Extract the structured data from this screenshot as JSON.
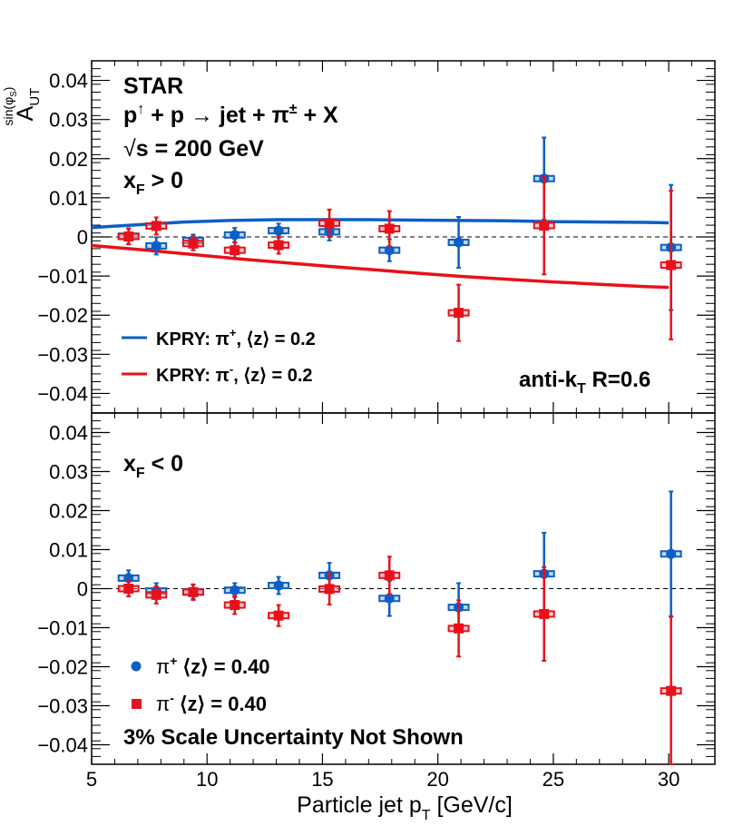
{
  "chart_data": [
    {
      "type": "scatter",
      "panel": "top",
      "title": "STAR",
      "reaction": {
        "base": "p",
        "arrow": "↑",
        "rest": " + p  → jet +  π",
        "sup": "±",
        "tail": " + X"
      },
      "energy": {
        "root": "√",
        "text": "s = 200 GeV"
      },
      "condition": {
        "base": "x",
        "sub": "F",
        "rest": " > 0"
      },
      "ylabel": {
        "base": "A",
        "sub": "UT",
        "sup": "sin(φ",
        "supsub": "S",
        "supclose": ")"
      },
      "annotation": {
        "base": "anti-k",
        "sub": "T",
        "rest": " R=0.6"
      },
      "xlim": [
        5,
        32
      ],
      "ylim": [
        -0.045,
        0.045
      ],
      "yticks": [
        -0.04,
        -0.03,
        -0.02,
        -0.01,
        0,
        0.01,
        0.02,
        0.03,
        0.04
      ],
      "ytick_labels": [
        "−0.04",
        "−0.03",
        "−0.02",
        "−0.01",
        "0",
        "0.01",
        "0.02",
        "0.03",
        "0.04"
      ],
      "series": [
        {
          "name": "pi_plus",
          "marker": "circle",
          "color": "#0b5fc4",
          "x": [
            6.6,
            7.8,
            9.4,
            11.2,
            13.1,
            15.3,
            17.9,
            20.9,
            24.6,
            30.1
          ],
          "y": [
            0.0002,
            -0.0023,
            -0.0009,
            0.0005,
            0.0016,
            0.0013,
            -0.0034,
            -0.0014,
            0.0149,
            -0.0027
          ],
          "err": [
            0.002,
            0.0022,
            0.0015,
            0.0018,
            0.0018,
            0.0022,
            0.0028,
            0.0065,
            0.0105,
            0.016
          ]
        },
        {
          "name": "pi_minus",
          "marker": "square",
          "color": "#e8101a",
          "x": [
            6.6,
            7.8,
            9.4,
            11.2,
            13.1,
            15.3,
            17.9,
            20.9,
            24.6,
            30.1
          ],
          "y": [
            0.0001,
            0.0028,
            -0.0017,
            -0.0034,
            -0.0021,
            0.0035,
            0.0021,
            -0.0194,
            0.0029,
            -0.0072
          ],
          "err": [
            0.002,
            0.0022,
            0.0017,
            0.002,
            0.0022,
            0.0035,
            0.0045,
            0.0072,
            0.0125,
            0.019
          ]
        }
      ],
      "curves": [
        {
          "name": "KPRY pi+",
          "color": "#0b5fc4",
          "x": [
            5,
            7,
            9,
            11,
            13,
            15,
            17,
            19,
            21,
            23,
            25,
            27,
            29,
            30
          ],
          "y": [
            0.0024,
            0.0031,
            0.0038,
            0.0042,
            0.0044,
            0.0044,
            0.0044,
            0.0043,
            0.0042,
            0.0041,
            0.0039,
            0.0038,
            0.0037,
            0.0036
          ]
        },
        {
          "name": "KPRY pi-",
          "color": "#e8101a",
          "x": [
            5,
            7,
            9,
            11,
            13,
            15,
            17,
            19,
            21,
            23,
            25,
            27,
            29,
            30
          ],
          "y": [
            -0.0022,
            -0.0032,
            -0.0043,
            -0.0054,
            -0.0064,
            -0.0074,
            -0.0083,
            -0.0092,
            -0.0101,
            -0.0108,
            -0.0115,
            -0.0121,
            -0.0127,
            -0.0129
          ]
        }
      ],
      "legend": [
        {
          "color": "#0b5fc4",
          "prefix": "KPRY: π",
          "sup": "+",
          "suffix": ", ⟨z⟩ = 0.2"
        },
        {
          "color": "#e8101a",
          "prefix": "KPRY: π",
          "sup": "-",
          "suffix": ", ⟨z⟩ = 0.2"
        }
      ]
    },
    {
      "type": "scatter",
      "panel": "bottom",
      "condition": {
        "base": "x",
        "sub": "F",
        "rest": " < 0"
      },
      "note": "3% Scale Uncertainty Not Shown",
      "xlabel": {
        "base": "Particle jet p",
        "sub": "T",
        "rest": " [GeV/c]"
      },
      "xlim": [
        5,
        32
      ],
      "ylim": [
        -0.045,
        0.045
      ],
      "xticks": [
        5,
        10,
        15,
        20,
        25,
        30
      ],
      "xtick_labels": [
        "5",
        "10",
        "15",
        "20",
        "25",
        "30"
      ],
      "yticks": [
        -0.04,
        -0.03,
        -0.02,
        -0.01,
        0,
        0.01,
        0.02,
        0.03,
        0.04
      ],
      "ytick_labels": [
        "−0.04",
        "−0.03",
        "−0.02",
        "−0.01",
        "0",
        "0.01",
        "0.02",
        "0.03",
        "0.04"
      ],
      "series": [
        {
          "name": "pi_plus",
          "marker": "circle",
          "color": "#0b5fc4",
          "x": [
            6.6,
            7.8,
            9.4,
            11.2,
            13.1,
            15.3,
            17.9,
            20.9,
            24.6,
            30.1
          ],
          "y": [
            0.0027,
            -0.0006,
            -0.0008,
            -0.0004,
            0.0008,
            0.0034,
            -0.0025,
            -0.0048,
            0.0038,
            0.0089
          ],
          "err": [
            0.002,
            0.002,
            0.0018,
            0.0018,
            0.0022,
            0.0032,
            0.0045,
            0.0062,
            0.0105,
            0.016
          ]
        },
        {
          "name": "pi_minus",
          "marker": "square",
          "color": "#e8101a",
          "x": [
            6.6,
            7.8,
            9.4,
            11.2,
            13.1,
            15.3,
            17.9,
            20.9,
            24.6,
            30.1
          ],
          "y": [
            0.0,
            -0.0016,
            -0.0009,
            -0.0042,
            -0.0069,
            -0.0001,
            0.0034,
            -0.0102,
            -0.0065,
            -0.0262
          ],
          "err": [
            0.002,
            0.0022,
            0.002,
            0.0023,
            0.0027,
            0.004,
            0.0048,
            0.0072,
            0.012,
            0.019
          ]
        }
      ],
      "legend": [
        {
          "color": "#0b5fc4",
          "marker": "circle",
          "prefix": "π",
          "sup": "+",
          "suffix": "  ⟨z⟩ = 0.40"
        },
        {
          "color": "#e8101a",
          "marker": "square",
          "prefix": "π",
          "sup": "-",
          "suffix": "  ⟨z⟩ = 0.40"
        }
      ]
    }
  ]
}
